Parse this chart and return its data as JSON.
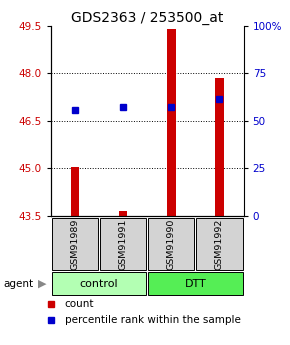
{
  "title": "GDS2363 / 253500_at",
  "samples": [
    "GSM91989",
    "GSM91991",
    "GSM91990",
    "GSM91992"
  ],
  "bar_values": [
    45.05,
    43.65,
    49.4,
    47.85
  ],
  "percentile_values": [
    46.85,
    46.95,
    46.95,
    47.2
  ],
  "ylim_left": [
    43.5,
    49.5
  ],
  "ylim_right": [
    0,
    100
  ],
  "yticks_left": [
    43.5,
    45.0,
    46.5,
    48.0,
    49.5
  ],
  "yticks_right": [
    0,
    25,
    50,
    75,
    100
  ],
  "bar_color": "#cc0000",
  "percentile_color": "#0000cc",
  "bar_bottom": 43.5,
  "bar_width": 0.18,
  "title_fontsize": 10,
  "tick_fontsize": 7.5,
  "legend_fontsize": 7.5,
  "group_colors": [
    "#b3ffb3",
    "#55ee55"
  ],
  "group_labels": [
    "control",
    "DTT"
  ],
  "group_ranges": [
    [
      0,
      2
    ],
    [
      2,
      4
    ]
  ]
}
